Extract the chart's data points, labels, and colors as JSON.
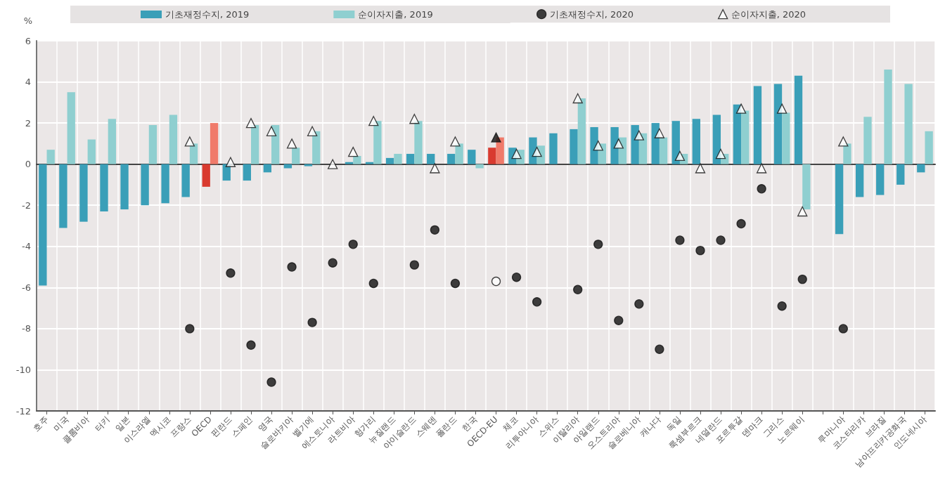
{
  "chart_data": {
    "type": "bar",
    "ylabel": "%",
    "legend": "top",
    "grid": true,
    "categories": [
      "호주",
      "미국",
      "콜롬비아",
      "터키",
      "일본",
      "이스라엘",
      "멕시코",
      "프랑스",
      "OECD",
      "핀란드",
      "스페인",
      "영국",
      "슬로바키아",
      "벨기에",
      "에스토니아",
      "라트비아",
      "헝가리",
      "뉴질랜드",
      "아이슬란드",
      "스웨덴",
      "폴란드",
      "한국",
      "OECD-EU",
      "체코",
      "리투아니아",
      "스위스",
      "이탈리아",
      "아일랜드",
      "오스트리아",
      "슬로베니아",
      "캐나다",
      "독일",
      "룩셈부르크",
      "네덜란드",
      "포르투갈",
      "덴마크",
      "그리스",
      "노르웨이",
      null,
      "루마니아",
      "코스타리카",
      "브라질",
      "남아프리카공화국",
      "인도네시아"
    ],
    "ylim": [
      -12,
      6
    ],
    "yticks": [
      -12,
      -10,
      -8,
      -6,
      -4,
      -2,
      0,
      2,
      4,
      6
    ],
    "series": [
      {
        "name": "기초재정수지, 2019",
        "color": "#3a9fb8",
        "values": [
          -5.9,
          -3.1,
          -2.8,
          -2.3,
          -2.2,
          -2.0,
          -1.9,
          -1.6,
          -1.1,
          -0.8,
          -0.8,
          -0.4,
          -0.2,
          -0.1,
          0,
          0.1,
          0.1,
          0.3,
          0.5,
          0.5,
          0.5,
          0.7,
          0.8,
          0.8,
          1.3,
          1.5,
          1.7,
          1.8,
          1.8,
          1.9,
          2.0,
          2.1,
          2.2,
          2.4,
          2.9,
          3.8,
          3.9,
          4.3,
          null,
          -3.4,
          -1.6,
          -1.5,
          -1.0,
          -0.4
        ],
        "colors": [
          "#3a9fb8",
          "#3a9fb8",
          "#3a9fb8",
          "#3a9fb8",
          "#3a9fb8",
          "#3a9fb8",
          "#3a9fb8",
          "#3a9fb8",
          "#d93a2f",
          "#3a9fb8",
          "#3a9fb8",
          "#3a9fb8",
          "#3a9fb8",
          "#3a9fb8",
          "#3a9fb8",
          "#3a9fb8",
          "#3a9fb8",
          "#3a9fb8",
          "#3a9fb8",
          "#3a9fb8",
          "#3a9fb8",
          "#3a9fb8",
          "#d93a2f",
          "#3a9fb8",
          "#3a9fb8",
          "#3a9fb8",
          "#3a9fb8",
          "#3a9fb8",
          "#3a9fb8",
          "#3a9fb8",
          "#3a9fb8",
          "#3a9fb8",
          "#3a9fb8",
          "#3a9fb8",
          "#3a9fb8",
          "#3a9fb8",
          "#3a9fb8",
          "#3a9fb8",
          "#3a9fb8",
          "#3a9fb8",
          "#3a9fb8",
          "#3a9fb8",
          "#3a9fb8",
          "#3a9fb8"
        ]
      },
      {
        "name": "순이자지출, 2019",
        "color": "#8fcfd0",
        "values": [
          0.7,
          3.5,
          1.2,
          2.2,
          0,
          1.9,
          2.4,
          1.0,
          2.0,
          0,
          1.9,
          1.9,
          0.8,
          1.6,
          0,
          0.4,
          2.1,
          0.5,
          2.1,
          0,
          1.0,
          -0.2,
          1.3,
          0.7,
          0.9,
          0,
          3.2,
          1.0,
          1.3,
          1.5,
          1.3,
          0.5,
          0,
          0.5,
          2.6,
          0,
          2.5,
          -2.2,
          null,
          1.0,
          2.3,
          4.6,
          3.9,
          1.6
        ],
        "colors": [
          "#8fcfd0",
          "#8fcfd0",
          "#8fcfd0",
          "#8fcfd0",
          "#8fcfd0",
          "#8fcfd0",
          "#8fcfd0",
          "#8fcfd0",
          "#f07a6a",
          "#8fcfd0",
          "#8fcfd0",
          "#8fcfd0",
          "#8fcfd0",
          "#8fcfd0",
          "#8fcfd0",
          "#8fcfd0",
          "#8fcfd0",
          "#8fcfd0",
          "#8fcfd0",
          "#8fcfd0",
          "#8fcfd0",
          "#8fcfd0",
          "#f07a6a",
          "#8fcfd0",
          "#8fcfd0",
          "#8fcfd0",
          "#8fcfd0",
          "#8fcfd0",
          "#8fcfd0",
          "#8fcfd0",
          "#8fcfd0",
          "#8fcfd0",
          "#8fcfd0",
          "#8fcfd0",
          "#8fcfd0",
          "#8fcfd0",
          "#8fcfd0",
          "#8fcfd0",
          "#8fcfd0",
          "#8fcfd0",
          "#8fcfd0",
          "#8fcfd0",
          "#8fcfd0",
          "#8fcfd0"
        ]
      },
      {
        "name": "기초재정수지, 2020",
        "type": "scatter",
        "marker": "circle",
        "color": "#111111",
        "values": [
          null,
          null,
          null,
          null,
          null,
          null,
          null,
          -8.0,
          null,
          -5.3,
          -8.8,
          -10.6,
          -5.0,
          -7.7,
          -4.8,
          -3.9,
          -5.8,
          null,
          -4.9,
          -3.2,
          -5.8,
          null,
          -5.7,
          -5.5,
          -6.7,
          null,
          -6.1,
          -3.9,
          -7.6,
          -6.8,
          -9.0,
          -3.7,
          -4.2,
          -3.7,
          -2.9,
          -1.2,
          -6.9,
          -5.6,
          null,
          -8.0,
          null,
          null,
          null,
          null
        ],
        "colors": [
          "#111111",
          "#111111",
          "#111111",
          "#111111",
          "#111111",
          "#111111",
          "#111111",
          "#111111",
          "#111111",
          "#111111",
          "#111111",
          "#111111",
          "#111111",
          "#111111",
          "#111111",
          "#111111",
          "#111111",
          "#111111",
          "#111111",
          "#111111",
          "#111111",
          "#111111",
          "#ffffff",
          "#111111",
          "#111111",
          "#111111",
          "#111111",
          "#111111",
          "#111111",
          "#111111",
          "#111111",
          "#111111",
          "#111111",
          "#111111",
          "#111111",
          "#111111",
          "#111111",
          "#111111",
          "#111111",
          "#111111",
          "#111111",
          "#111111",
          "#111111",
          "#111111"
        ]
      },
      {
        "name": "순이자지출, 2020",
        "type": "scatter",
        "marker": "triangle",
        "color": "#ffffff",
        "values": [
          null,
          null,
          null,
          null,
          null,
          null,
          null,
          1.1,
          null,
          0.1,
          2.0,
          1.6,
          1.0,
          1.6,
          0.0,
          0.6,
          2.1,
          null,
          2.2,
          -0.2,
          1.1,
          null,
          1.3,
          0.5,
          0.6,
          null,
          3.2,
          0.9,
          1.0,
          1.4,
          1.5,
          0.4,
          -0.2,
          0.5,
          2.7,
          -0.2,
          2.7,
          -2.3,
          null,
          1.1,
          null,
          null,
          null,
          null
        ],
        "colors": [
          "#ffffff",
          "#ffffff",
          "#ffffff",
          "#ffffff",
          "#ffffff",
          "#ffffff",
          "#ffffff",
          "#ffffff",
          "#ffffff",
          "#ffffff",
          "#ffffff",
          "#ffffff",
          "#ffffff",
          "#ffffff",
          "#ffffff",
          "#ffffff",
          "#ffffff",
          "#ffffff",
          "#ffffff",
          "#ffffff",
          "#ffffff",
          "#ffffff",
          "#111111",
          "#ffffff",
          "#ffffff",
          "#ffffff",
          "#ffffff",
          "#ffffff",
          "#ffffff",
          "#ffffff",
          "#ffffff",
          "#ffffff",
          "#ffffff",
          "#ffffff",
          "#ffffff",
          "#ffffff",
          "#ffffff",
          "#ffffff",
          "#ffffff",
          "#ffffff",
          "#ffffff",
          "#ffffff",
          "#ffffff",
          "#ffffff"
        ]
      }
    ]
  }
}
